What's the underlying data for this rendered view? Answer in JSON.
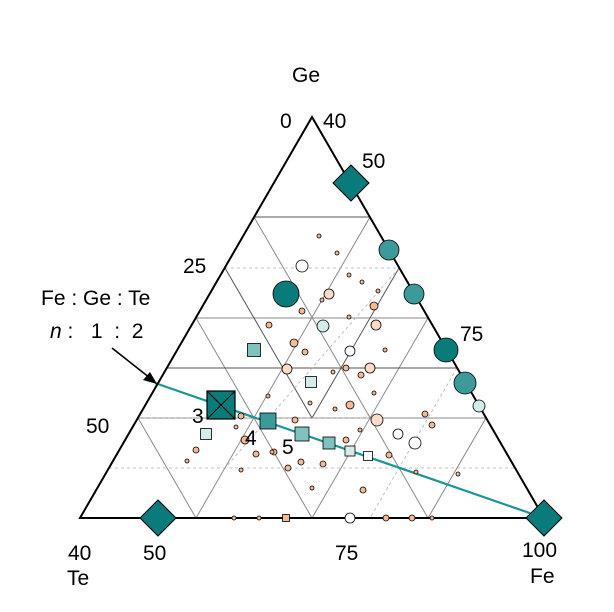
{
  "vertices": {
    "top": {
      "element": "Ge",
      "value": "40",
      "origin_value": "0"
    },
    "left": {
      "element": "Te",
      "value": "40"
    },
    "right": {
      "element": "Fe",
      "value": "100"
    }
  },
  "ticks": {
    "left_edge": [
      "25",
      "50"
    ],
    "right_edge": [
      "50",
      "75"
    ],
    "bottom_edge": [
      "50",
      "75"
    ]
  },
  "ratio_legend": {
    "header": "Fe : Ge : Te",
    "n_symbol": "n",
    "row": " :   1  :  2"
  },
  "series_labels": [
    "3",
    "4",
    "5"
  ],
  "colors": {
    "dark_teal": "#0a7b7b",
    "mid_teal": "#3d9a9a",
    "light_teal": "#7fc2c0",
    "pale_teal": "#d3ece9",
    "peach": "#f5b994",
    "pale_peach": "#fcdcc8",
    "line_teal": "#1a9595"
  },
  "notes": "Ternary composition diagram of the Fe-Ge-Te system."
}
